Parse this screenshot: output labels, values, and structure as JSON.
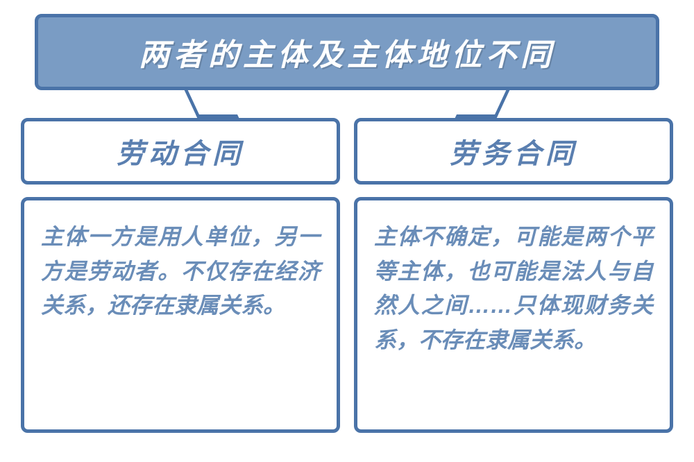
{
  "type": "comparison-diagram",
  "colors": {
    "header_bg": "#7a9cc4",
    "border": "#4a73a8",
    "header_text": "#ffffff",
    "sub_text": "#5a7fb0",
    "content_text": "#6a8db8",
    "background": "#ffffff"
  },
  "typography": {
    "header_fontsize": 44,
    "sub_header_fontsize": 40,
    "content_fontsize": 32,
    "font_weight": 900,
    "font_style": "italic",
    "letter_spacing": 6
  },
  "layout": {
    "border_width": 5,
    "border_radius": 10,
    "column_gap": 20,
    "content_min_height": 340
  },
  "header": {
    "title": "两者的主体及主体地位不同"
  },
  "columns": [
    {
      "title": "劳动合同",
      "content": "主体一方是用人单位，另一方是劳动者。不仅存在经济关系，还存在隶属关系。"
    },
    {
      "title": "劳务合同",
      "content": "主体不确定，可能是两个平等主体，也可能是法人与自然人之间……只体现财务关系，不存在隶属关系。"
    }
  ]
}
